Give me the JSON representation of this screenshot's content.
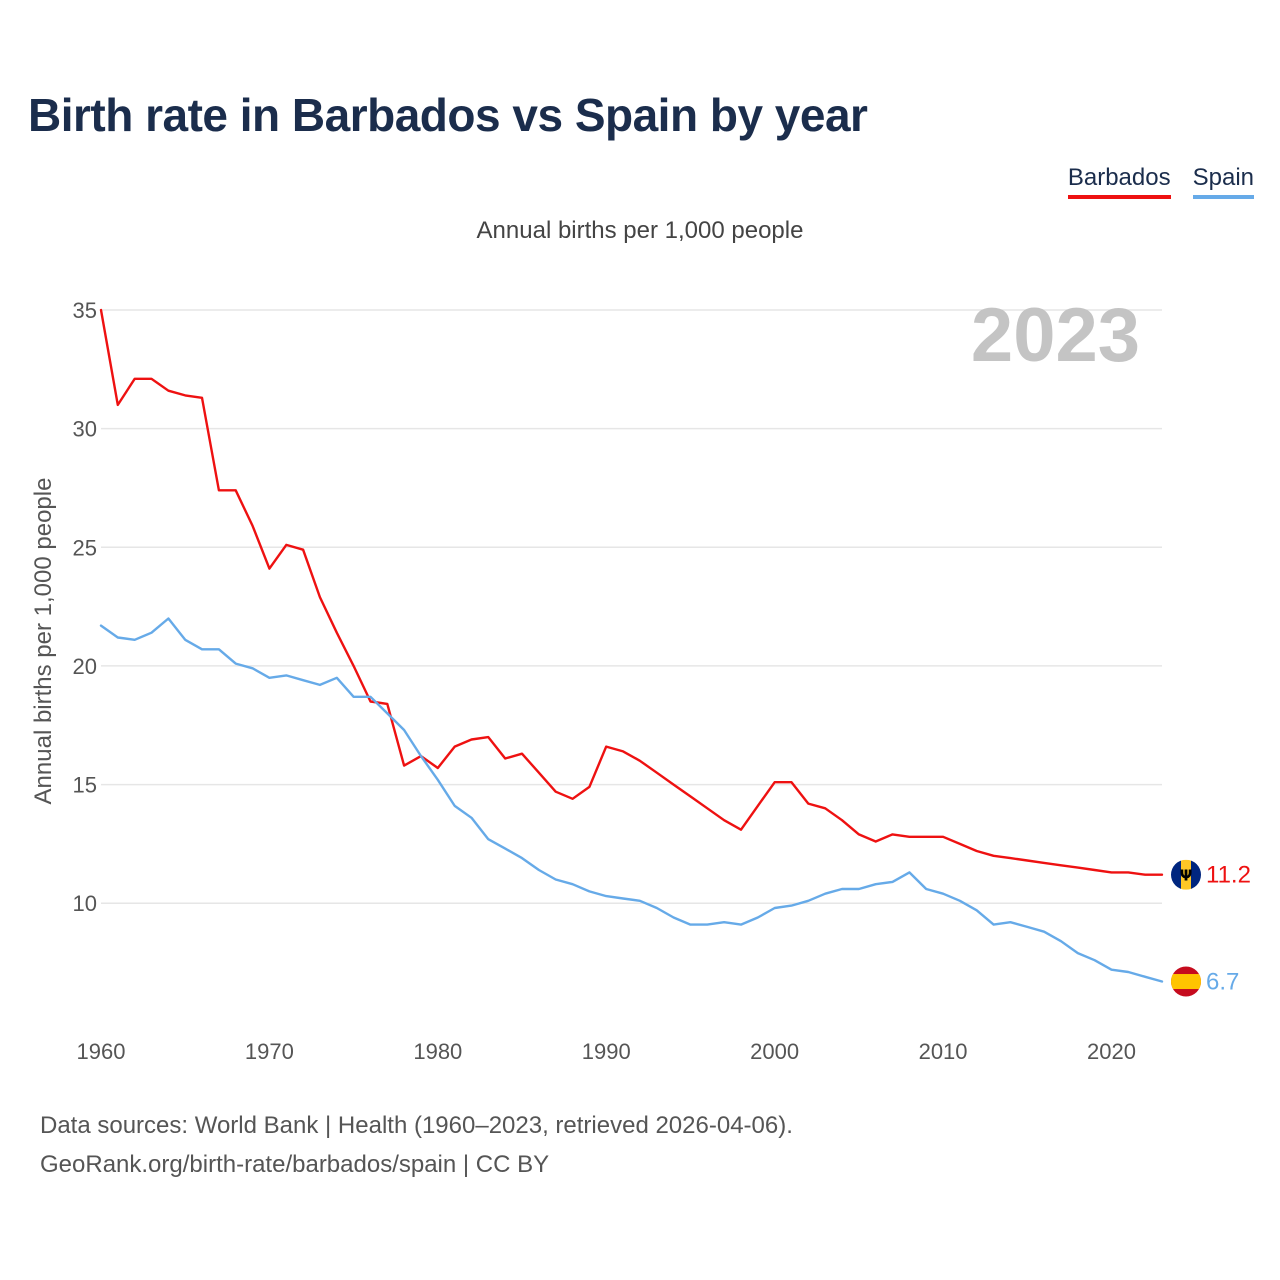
{
  "title": "Birth rate in Barbados vs Spain by year",
  "subtitle": "Annual births per 1,000 people",
  "legend": {
    "barbados": "Barbados",
    "spain": "Spain"
  },
  "watermark_year": "2023",
  "source": {
    "line1": "Data sources: World Bank | Health (1960–2023, retrieved 2026-04-06).",
    "line2": "GeoRank.org/birth-rate/barbados/spain | CC BY"
  },
  "colors": {
    "barbados": "#ee1111",
    "spain": "#66aae8",
    "grid": "#e6e6e6"
  },
  "icons": {
    "barbados_flag": "barbados-flag-icon",
    "spain_flag": "spain-flag-icon"
  },
  "chart_data": {
    "type": "line",
    "title": "Birth rate in Barbados vs Spain by year",
    "xlabel": "",
    "ylabel": "Annual births per 1,000 people",
    "xlim": [
      1960,
      2023
    ],
    "ylim": [
      5.5,
      35
    ],
    "x_ticks": [
      1960,
      1970,
      1980,
      1990,
      2000,
      2010,
      2020
    ],
    "y_ticks": [
      10,
      15,
      20,
      25,
      30,
      35
    ],
    "grid": true,
    "legend_position": "top-right",
    "x": [
      1960,
      1961,
      1962,
      1963,
      1964,
      1965,
      1966,
      1967,
      1968,
      1969,
      1970,
      1971,
      1972,
      1973,
      1974,
      1975,
      1976,
      1977,
      1978,
      1979,
      1980,
      1981,
      1982,
      1983,
      1984,
      1985,
      1986,
      1987,
      1988,
      1989,
      1990,
      1991,
      1992,
      1993,
      1994,
      1995,
      1996,
      1997,
      1998,
      1999,
      2000,
      2001,
      2002,
      2003,
      2004,
      2005,
      2006,
      2007,
      2008,
      2009,
      2010,
      2011,
      2012,
      2013,
      2014,
      2015,
      2016,
      2017,
      2018,
      2019,
      2020,
      2021,
      2022,
      2023
    ],
    "series": [
      {
        "name": "Barbados",
        "end_label": "11.2",
        "values": [
          35.0,
          31.0,
          32.1,
          32.1,
          31.6,
          31.4,
          31.3,
          27.4,
          27.4,
          25.9,
          24.1,
          25.1,
          24.9,
          22.9,
          21.4,
          20.0,
          18.5,
          18.4,
          15.8,
          16.2,
          15.7,
          16.6,
          16.9,
          17.0,
          16.1,
          16.3,
          15.5,
          14.7,
          14.4,
          14.9,
          16.6,
          16.4,
          16.0,
          15.5,
          15.0,
          14.5,
          14.0,
          13.5,
          13.1,
          14.1,
          15.1,
          15.1,
          14.2,
          14.0,
          13.5,
          12.9,
          12.6,
          12.9,
          12.8,
          12.8,
          12.8,
          12.5,
          12.2,
          12.0,
          11.9,
          11.8,
          11.7,
          11.6,
          11.5,
          11.4,
          11.3,
          11.3,
          11.2,
          11.2
        ]
      },
      {
        "name": "Spain",
        "end_label": "6.7",
        "values": [
          21.7,
          21.2,
          21.1,
          21.4,
          22.0,
          21.1,
          20.7,
          20.7,
          20.1,
          19.9,
          19.5,
          19.6,
          19.4,
          19.2,
          19.5,
          18.7,
          18.7,
          18.0,
          17.3,
          16.2,
          15.2,
          14.1,
          13.6,
          12.7,
          12.3,
          11.9,
          11.4,
          11.0,
          10.8,
          10.5,
          10.3,
          10.2,
          10.1,
          9.8,
          9.4,
          9.1,
          9.1,
          9.2,
          9.1,
          9.4,
          9.8,
          9.9,
          10.1,
          10.4,
          10.6,
          10.6,
          10.8,
          10.9,
          11.3,
          10.6,
          10.4,
          10.1,
          9.7,
          9.1,
          9.2,
          9.0,
          8.8,
          8.4,
          7.9,
          7.6,
          7.2,
          7.1,
          6.9,
          6.7
        ]
      }
    ]
  }
}
